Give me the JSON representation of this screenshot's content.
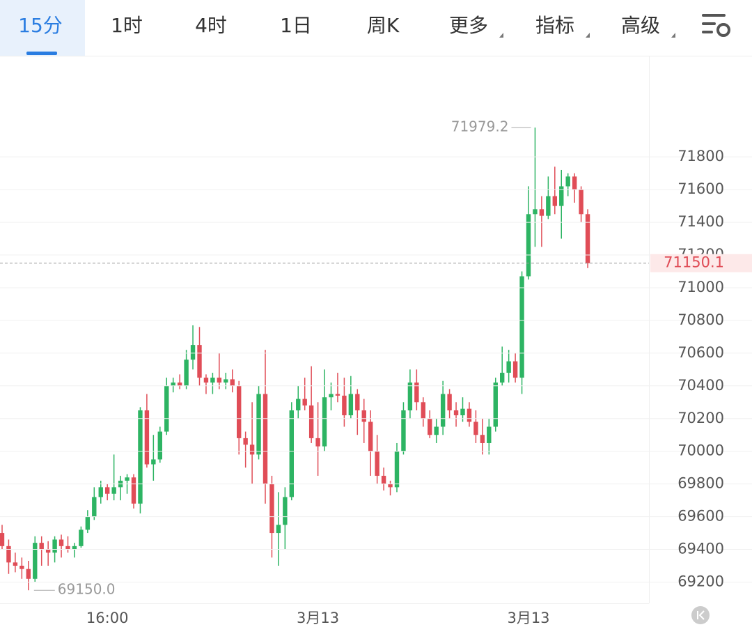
{
  "tabs": [
    "15分",
    "1时",
    "4时",
    "1日",
    "周K",
    "更多",
    "指标",
    "高级"
  ],
  "active_tab": 0,
  "chart_data": {
    "type": "candlestick",
    "categories": [
      null,
      null,
      null,
      null,
      null,
      null,
      null,
      null,
      null,
      null,
      null,
      null,
      null,
      null,
      null,
      null,
      "16:00",
      null,
      null,
      null,
      null,
      null,
      null,
      null,
      null,
      null,
      null,
      null,
      null,
      null,
      null,
      null,
      null,
      null,
      null,
      null,
      null,
      null,
      null,
      null,
      null,
      null,
      null,
      null,
      null,
      null,
      null,
      null,
      "3月13",
      null,
      null,
      null,
      null,
      null,
      null,
      null,
      null,
      null,
      null,
      null,
      null,
      null,
      null,
      null,
      null,
      null,
      null,
      null,
      null,
      null,
      null,
      null,
      null,
      null,
      null,
      null,
      null,
      null,
      null,
      null,
      "3月13",
      null,
      null,
      null,
      null,
      null,
      null,
      null,
      null,
      null
    ],
    "open": [
      69500,
      69420,
      69320,
      69300,
      69280,
      69220,
      69440,
      69400,
      69380,
      69460,
      69420,
      69400,
      69420,
      69520,
      69600,
      69720,
      69780,
      69740,
      69780,
      69820,
      69840,
      69680,
      70250,
      69920,
      69950,
      70120,
      70400,
      70420,
      70400,
      70560,
      70650,
      70450,
      70420,
      70450,
      70420,
      70440,
      70400,
      70080,
      70040,
      69980,
      70350,
      69800,
      69500,
      69550,
      69720,
      70250,
      70320,
      70280,
      70080,
      70030,
      70330,
      70350,
      70340,
      70220,
      70350,
      70250,
      70180,
      70000,
      69850,
      69800,
      69780,
      70000,
      70250,
      70420,
      70300,
      70200,
      70100,
      70150,
      70350,
      70250,
      70220,
      70260,
      70180,
      70100,
      70050,
      70150,
      70420,
      70480,
      70550,
      70450,
      71070,
      71450,
      71480,
      71440,
      71560,
      71500,
      71620,
      71680,
      71600,
      71450
    ],
    "high": [
      69550,
      69460,
      69380,
      69350,
      69330,
      69480,
      69480,
      69450,
      69480,
      69490,
      69480,
      69440,
      69540,
      69640,
      69780,
      69820,
      69800,
      69980,
      69850,
      69860,
      69860,
      70270,
      70350,
      70100,
      70150,
      70450,
      70450,
      70470,
      70620,
      70770,
      70760,
      70470,
      70480,
      70600,
      70480,
      70500,
      70430,
      70120,
      70300,
      70400,
      70620,
      69850,
      69750,
      69780,
      70300,
      70400,
      70450,
      70520,
      70300,
      70500,
      70420,
      70480,
      70450,
      70460,
      70380,
      70320,
      70250,
      70100,
      69900,
      69820,
      70050,
      70300,
      70500,
      70500,
      70330,
      70250,
      70200,
      70430,
      70380,
      70300,
      70330,
      70300,
      70250,
      70200,
      70200,
      70450,
      70640,
      70620,
      70600,
      71100,
      71620,
      71979.2,
      71560,
      71680,
      71740,
      71720,
      71700,
      71700,
      71620,
      71480
    ],
    "low": [
      69400,
      69250,
      69260,
      69220,
      69150,
      69200,
      69300,
      69300,
      69320,
      69350,
      69380,
      69350,
      69410,
      69500,
      69580,
      69680,
      69700,
      69700,
      69700,
      69740,
      69650,
      69620,
      69900,
      69820,
      69930,
      70100,
      70360,
      70380,
      70380,
      70500,
      70400,
      70350,
      70350,
      70380,
      70380,
      70360,
      69980,
      69900,
      69800,
      69950,
      69680,
      69350,
      69300,
      69400,
      69700,
      70200,
      70250,
      70050,
      69850,
      70000,
      70250,
      70300,
      70150,
      70200,
      70100,
      70050,
      69850,
      69800,
      69760,
      69730,
      69750,
      69980,
      70200,
      70250,
      70150,
      70080,
      70050,
      70100,
      70200,
      70150,
      70180,
      70150,
      70050,
      69980,
      69980,
      70120,
      70400,
      70420,
      70420,
      70350,
      71050,
      71250,
      71250,
      71420,
      71450,
      71300,
      71560,
      71520,
      71400,
      71120
    ],
    "close": [
      69420,
      69320,
      69300,
      69280,
      69220,
      69440,
      69400,
      69380,
      69460,
      69420,
      69400,
      69420,
      69520,
      69600,
      69720,
      69780,
      69740,
      69780,
      69820,
      69840,
      69680,
      70250,
      69920,
      69950,
      70120,
      70400,
      70420,
      70400,
      70560,
      70650,
      70450,
      70420,
      70450,
      70420,
      70440,
      70400,
      70080,
      70040,
      69980,
      70350,
      69800,
      69500,
      69550,
      69720,
      70250,
      70320,
      70280,
      70080,
      70030,
      70330,
      70350,
      70340,
      70220,
      70350,
      70250,
      70180,
      70000,
      69850,
      69800,
      69780,
      70000,
      70250,
      70420,
      70300,
      70200,
      70100,
      70150,
      70350,
      70250,
      70220,
      70260,
      70180,
      70100,
      70050,
      70150,
      70420,
      70480,
      70550,
      70450,
      71070,
      71450,
      71480,
      71440,
      71560,
      71500,
      71620,
      71680,
      71600,
      71450,
      71150.1
    ],
    "up_color": "#2db463",
    "down_color": "#e04d57",
    "ylim": [
      69070,
      72410
    ],
    "yticks": [
      69200,
      69400,
      69600,
      69800,
      70000,
      70200,
      70400,
      70600,
      70800,
      71000,
      71200,
      71400,
      71600,
      71800
    ],
    "grid": true,
    "max_label": "71979.2",
    "min_label": "69150.0",
    "last_price": {
      "value": 71150.1,
      "label": "71150.1"
    }
  }
}
